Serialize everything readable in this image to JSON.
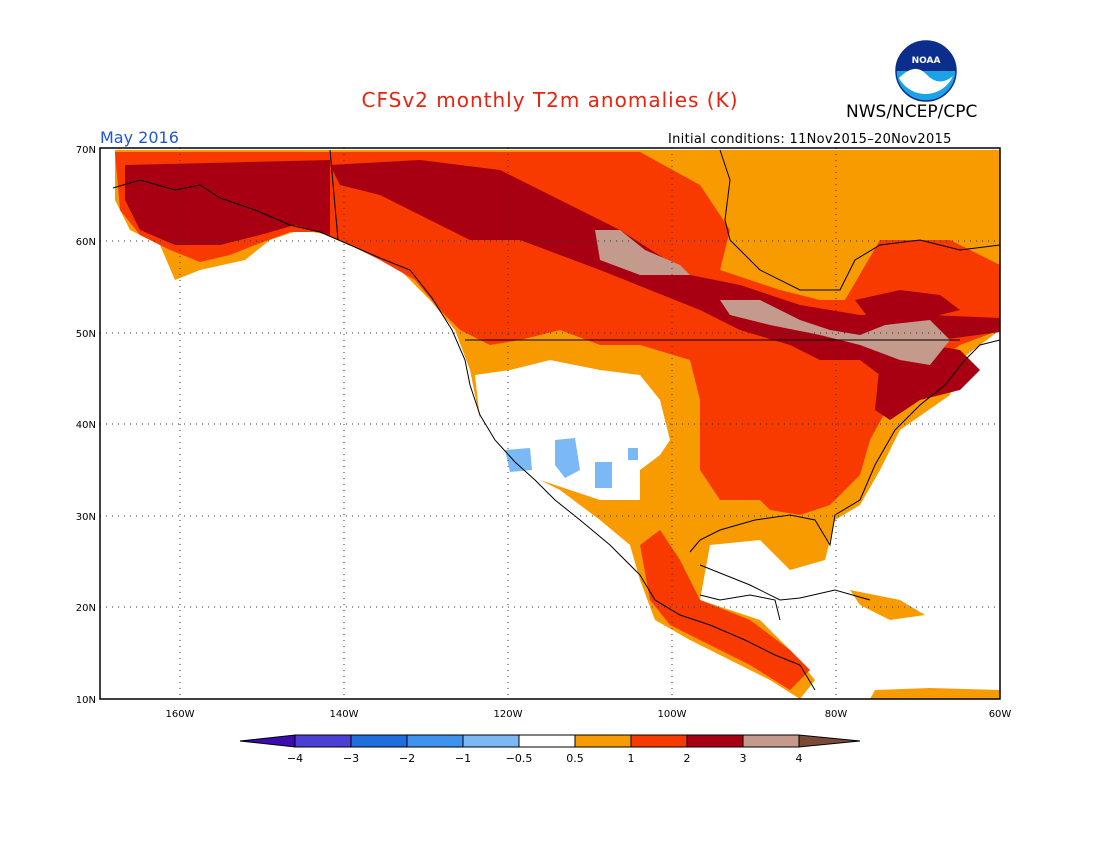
{
  "title": "CFSv2 monthly T2m anomalies (K)",
  "organization": "NWS/NCEP/CPC",
  "logo_text": "NOAA",
  "forecast_month": "May 2016",
  "initial_conditions": "Initial conditions: 11Nov2015–20Nov2015",
  "map": {
    "lat_labels": [
      "70N",
      "60N",
      "50N",
      "40N",
      "30N",
      "20N",
      "10N"
    ],
    "lon_labels": [
      "160W",
      "140W",
      "120W",
      "100W",
      "80W",
      "60W"
    ],
    "grid": "dotted"
  },
  "colorbar": {
    "labels": [
      "−4",
      "−3",
      "−2",
      "−1",
      "−0.5",
      "0.5",
      "1",
      "2",
      "3",
      "4"
    ],
    "colors": [
      "#3a0cae",
      "#4b3fd6",
      "#1f6ee0",
      "#3f93f0",
      "#7ab9f6",
      "#ffffff",
      "#f89b00",
      "#f83a00",
      "#a80012",
      "#c49a8c",
      "#7a4a38"
    ]
  }
}
